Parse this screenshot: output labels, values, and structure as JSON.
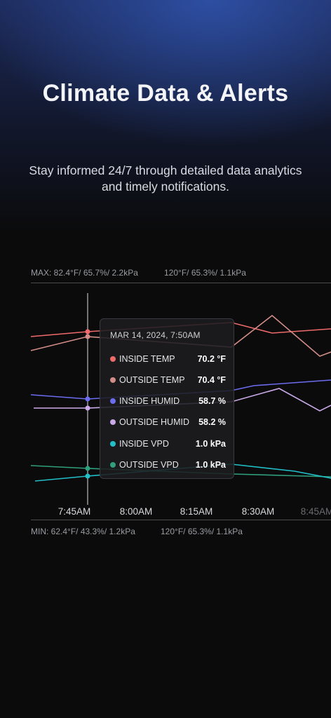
{
  "hero": {
    "title": "Climate Data & Alerts",
    "subtitle": "Stay informed 24/7 through detailed data analytics and timely notifications."
  },
  "ranges": {
    "max_left": "MAX: 82.4°F/ 65.7%/ 2.2kPa",
    "max_right": "120°F/ 65.3%/ 1.1kPa",
    "min_left": "MIN: 62.4°F/ 43.3%/ 1.2kPa",
    "min_right": "120°F/ 65.3%/ 1.1kPa"
  },
  "tooltip": {
    "date": "MAR 14, 2024, 7:50AM",
    "rows": [
      {
        "label": "INSIDE TEMP",
        "value": "70.2 °F"
      },
      {
        "label": "OUTSIDE TEMP",
        "value": "70.4 °F"
      },
      {
        "label": "INSIDE HUMID",
        "value": "58.7 %"
      },
      {
        "label": "OUTSIDE HUMID",
        "value": "58.2 %"
      },
      {
        "label": "INSIDE VPD",
        "value": "1.0 kPa"
      },
      {
        "label": "OUTSIDE VPD",
        "value": "1.0 kPa"
      }
    ]
  },
  "chart_data": {
    "type": "line",
    "x": [
      "7:45AM",
      "8:00AM",
      "8:15AM",
      "8:30AM",
      "8:45AM"
    ],
    "selected_x": "7:50AM",
    "series": [
      {
        "name": "INSIDE TEMP",
        "color": "#ef6a6a"
      },
      {
        "name": "OUTSIDE TEMP",
        "color": "#d28d88"
      },
      {
        "name": "INSIDE HUMID",
        "color": "#6c6cf0"
      },
      {
        "name": "OUTSIDE HUMID",
        "color": "#c9a9e8"
      },
      {
        "name": "INSIDE VPD",
        "color": "#22bfc9"
      },
      {
        "name": "OUTSIDE VPD",
        "color": "#2f9f7c"
      }
    ]
  }
}
